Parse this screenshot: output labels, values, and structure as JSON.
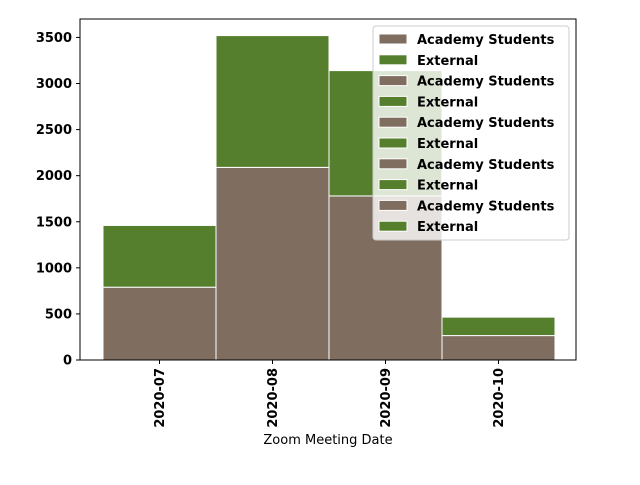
{
  "chart_data": {
    "type": "bar",
    "stacked": true,
    "categories": [
      "2020-07",
      "2020-08",
      "2020-09",
      "2020-10"
    ],
    "series": [
      {
        "name": "Academy Students",
        "values": [
          790,
          2090,
          1780,
          265
        ],
        "color": "#7f6d5f"
      },
      {
        "name": "External",
        "values": [
          670,
          1430,
          1360,
          200
        ],
        "color": "#557f2d"
      }
    ],
    "xlabel": "Zoom Meeting Date",
    "ylabel": "",
    "ylim": [
      0,
      3700
    ],
    "yticks": [
      0,
      500,
      1000,
      1500,
      2000,
      2500,
      3000,
      3500
    ],
    "grid": false,
    "legend": {
      "placement": "top-right",
      "entries": [
        {
          "label": "Academy Students",
          "color": "#7f6d5f"
        },
        {
          "label": "External",
          "color": "#557f2d"
        },
        {
          "label": "Academy Students",
          "color": "#7f6d5f"
        },
        {
          "label": "External",
          "color": "#557f2d"
        },
        {
          "label": "Academy Students",
          "color": "#7f6d5f"
        },
        {
          "label": "External",
          "color": "#557f2d"
        },
        {
          "label": "Academy Students",
          "color": "#7f6d5f"
        },
        {
          "label": "External",
          "color": "#557f2d"
        },
        {
          "label": "Academy Students",
          "color": "#7f6d5f"
        },
        {
          "label": "External",
          "color": "#557f2d"
        }
      ]
    }
  }
}
